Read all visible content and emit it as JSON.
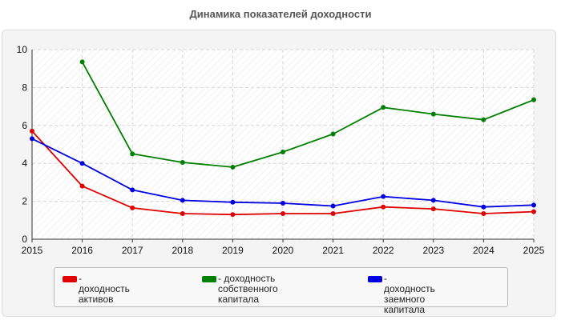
{
  "chart_data": {
    "type": "line",
    "title": "Динамика показателей доходности",
    "x": [
      "2015",
      "2016",
      "2017",
      "2018",
      "2019",
      "2020",
      "2021",
      "2022",
      "2023",
      "2024",
      "2025"
    ],
    "ylim": [
      0,
      10
    ],
    "yticks": [
      "0",
      "2",
      "4",
      "6",
      "8",
      "10"
    ],
    "grid": true,
    "legend_position": "bottom",
    "series": [
      {
        "name": "- доходность активов",
        "color": "#e00000",
        "values": [
          5.7,
          2.8,
          1.65,
          1.35,
          1.3,
          1.35,
          1.35,
          1.7,
          1.6,
          1.35,
          1.45
        ]
      },
      {
        "name": "- доходность собственного\nкапитала",
        "color": "#008000",
        "values": [
          null,
          9.35,
          4.5,
          4.05,
          3.8,
          4.6,
          5.55,
          6.95,
          6.6,
          6.3,
          7.35
        ]
      },
      {
        "name": "- доходность заемного\nкапитала",
        "color": "#0000e0",
        "values": [
          5.3,
          4.0,
          2.6,
          2.05,
          1.95,
          1.9,
          1.75,
          2.25,
          2.05,
          1.7,
          1.8
        ]
      }
    ]
  }
}
